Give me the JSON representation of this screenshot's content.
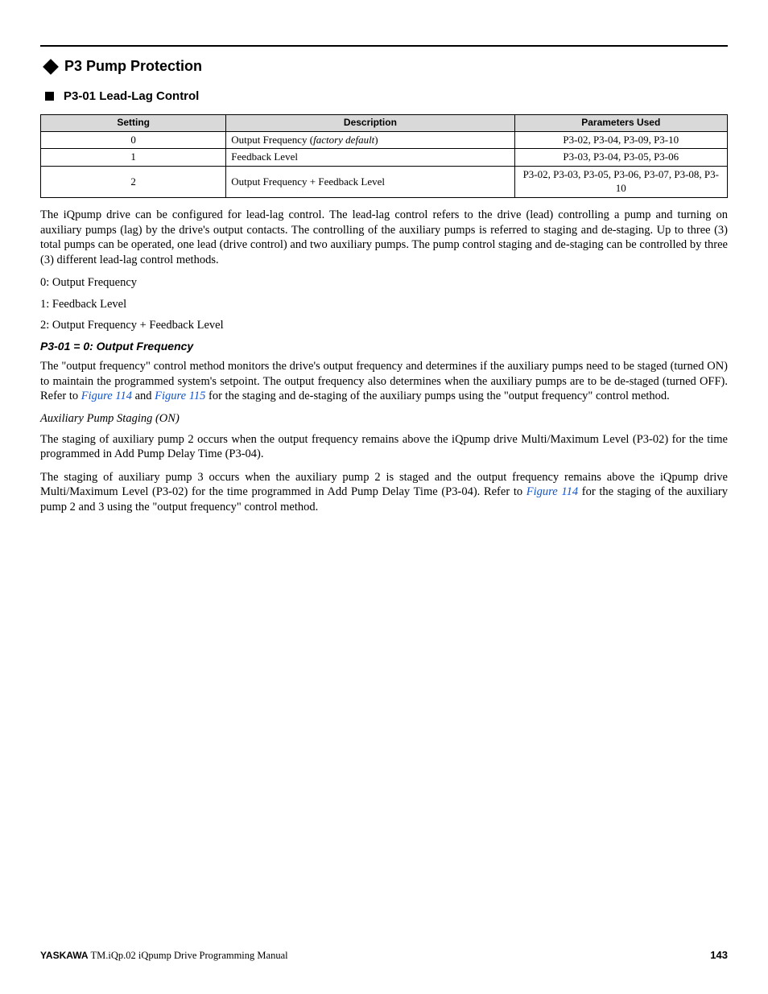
{
  "heading1": "P3 Pump Protection",
  "heading2": "P3-01 Lead-Lag Control",
  "table": {
    "columns": [
      "Setting",
      "Description",
      "Parameters Used"
    ],
    "rows": [
      {
        "setting": "0",
        "desc_prefix": "Output Frequency (",
        "desc_italic": "factory default",
        "desc_suffix": ")",
        "params": "P3-02, P3-04, P3-09, P3-10"
      },
      {
        "setting": "1",
        "desc_prefix": "Feedback Level",
        "desc_italic": "",
        "desc_suffix": "",
        "params": "P3-03, P3-04, P3-05, P3-06"
      },
      {
        "setting": "2",
        "desc_prefix": "Output Frequency + Feedback Level",
        "desc_italic": "",
        "desc_suffix": "",
        "params": "P3-02, P3-03, P3-05, P3-06, P3-07, P3-08, P3-10"
      }
    ],
    "header_bg": "#d9d9d9",
    "border_color": "#000000"
  },
  "para_intro": "The iQpump drive can be configured for lead-lag control. The lead-lag control refers to the drive (lead) controlling a pump and turning on auxiliary pumps (lag) by the drive's output contacts. The controlling of the auxiliary pumps is referred to staging and de-staging. Up to three (3) total pumps can be operated, one lead (drive control) and two auxiliary pumps. The pump control staging and de-staging can be controlled by three (3) different lead-lag control methods.",
  "list0": "0: Output Frequency",
  "list1": "1: Feedback Level",
  "list2": "2: Output Frequency + Feedback Level",
  "h3_1": "P3-01 = 0: Output Frequency",
  "para_outfreq_a": "The \"output frequency\" control method monitors the drive's output frequency and determines if the auxiliary pumps need to be staged (turned ON) to maintain the programmed system's setpoint. The output frequency also determines when the auxiliary pumps are to be de-staged (turned OFF). Refer to ",
  "fig114": "Figure 114",
  "para_outfreq_b": " and ",
  "fig115": "Figure 115",
  "para_outfreq_c": " for the staging and de-staging of the auxiliary pumps using the \"output frequency\" control method.",
  "sub_ital": "Auxiliary Pump Staging (ON)",
  "para_stage2": "The staging of auxiliary pump 2 occurs when the output frequency remains above the iQpump drive Multi/Maximum Level (P3-02) for the time programmed in Add Pump Delay Time (P3-04).",
  "para_stage3_a": "The staging of auxiliary pump 3 occurs when the auxiliary pump 2 is staged and the output frequency remains above the iQpump drive Multi/Maximum Level (P3-02) for the time programmed in Add Pump Delay Time (P3-04). Refer to ",
  "para_stage3_b": " for the staging of the auxiliary pump 2 and 3 using the \"output frequency\" control method.",
  "footer_brand": "YASKAWA",
  "footer_title": " TM.iQp.02 iQpump Drive Programming Manual",
  "page_number": "143",
  "colors": {
    "text": "#000000",
    "link": "#1155cc",
    "rule": "#000000",
    "background": "#ffffff"
  }
}
